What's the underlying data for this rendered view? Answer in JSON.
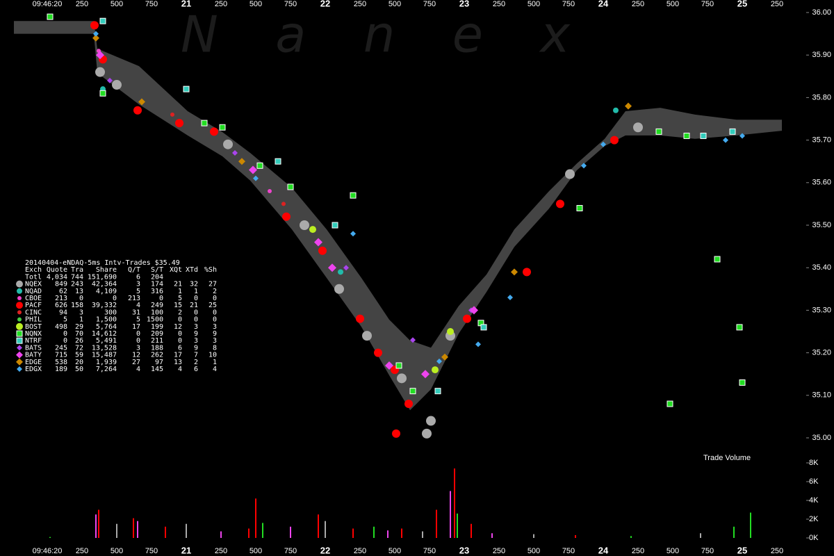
{
  "chart_data": {
    "type": "scatter",
    "watermark": "N a n e x",
    "xlim": [
      19.66,
      25.46
    ],
    "xticks": [
      {
        "value": 20,
        "label": "09:46:20"
      },
      {
        "value": 20.25,
        "label": "250"
      },
      {
        "value": 20.5,
        "label": "500"
      },
      {
        "value": 20.75,
        "label": "750"
      },
      21,
      {
        "value": 21.25,
        "label": "250"
      },
      {
        "value": 21.5,
        "label": "500"
      },
      {
        "value": 21.75,
        "label": "750"
      },
      22,
      {
        "value": 22.25,
        "label": "250"
      },
      {
        "value": 22.5,
        "label": "500"
      },
      {
        "value": 22.75,
        "label": "750"
      },
      23,
      {
        "value": 23.25,
        "label": "250"
      },
      {
        "value": 23.5,
        "label": "500"
      },
      {
        "value": 23.75,
        "label": "750"
      },
      24,
      {
        "value": 24.25,
        "label": "250"
      },
      {
        "value": 24.5,
        "label": "500"
      },
      {
        "value": 24.75,
        "label": "750"
      },
      25,
      {
        "value": 25.25,
        "label": "250"
      }
    ],
    "ylim": [
      35.0,
      36.0
    ],
    "yticks": [
      {
        "value": 35.0,
        "label": "35.00"
      },
      {
        "value": 35.1,
        "label": "35.10"
      },
      {
        "value": 35.2,
        "label": "35.20"
      },
      {
        "value": 35.3,
        "label": "35.30"
      },
      {
        "value": 35.4,
        "label": "35.40"
      },
      {
        "value": 35.5,
        "label": "35.50"
      },
      {
        "value": 35.6,
        "label": "35.60"
      },
      {
        "value": 35.7,
        "label": "35.70"
      },
      {
        "value": 35.8,
        "label": "35.80"
      },
      {
        "value": 35.9,
        "label": "35.90"
      },
      {
        "value": 36.0,
        "label": "36.00"
      }
    ],
    "band": {
      "color": "#444444",
      "x": [
        19.76,
        20.335,
        20.36,
        20.66,
        21.01,
        21.26,
        21.46,
        21.76,
        22.01,
        22.26,
        22.46,
        22.61,
        22.76,
        22.96,
        23.16,
        23.36,
        23.61,
        23.81,
        24.01,
        24.16,
        24.41,
        24.66,
        24.96,
        25.285
      ],
      "high": [
        35.98,
        35.98,
        35.915,
        35.874,
        35.768,
        35.719,
        35.67,
        35.588,
        35.49,
        35.376,
        35.278,
        35.229,
        35.212,
        35.31,
        35.384,
        35.49,
        35.58,
        35.645,
        35.703,
        35.768,
        35.776,
        35.76,
        35.748,
        35.748
      ],
      "low": [
        35.95,
        35.95,
        35.858,
        35.784,
        35.711,
        35.662,
        35.605,
        35.49,
        35.376,
        35.261,
        35.147,
        35.065,
        35.114,
        35.245,
        35.343,
        35.449,
        35.539,
        35.629,
        35.686,
        35.711,
        35.711,
        35.703,
        35.711,
        35.722
      ]
    },
    "legend_title": "20140404-eNDAQ-5ms Intv-Trades $35.49",
    "legend_columns": [
      "Exch",
      "Quote",
      "Tra",
      "Share",
      "Q/T",
      "S/T",
      "XQt",
      "XTd",
      "%Sh"
    ],
    "totals": {
      "label": "Totl",
      "stats": [
        "4,034",
        "744",
        "151,690",
        "6",
        "204"
      ]
    },
    "series": [
      {
        "name": "NQEX",
        "color": "#aaaaaa",
        "marker": "circle",
        "size": 7,
        "stats": [
          "849",
          "243",
          "42,364",
          "3",
          "174",
          "21",
          "32",
          "27"
        ],
        "x": [
          20.38,
          20.5,
          21.3,
          21.85,
          22.1,
          22.3,
          22.55,
          22.76,
          22.73,
          22.9,
          23.76,
          24.25
        ],
        "values": [
          35.86,
          35.83,
          35.69,
          35.5,
          35.35,
          35.24,
          35.14,
          35.04,
          35.01,
          35.24,
          35.62,
          35.73
        ]
      },
      {
        "name": "NQAD",
        "color": "#22bbaa",
        "marker": "circle",
        "size": 4,
        "stats": [
          "62",
          "13",
          "4,109",
          "5",
          "316",
          "1",
          "1",
          "2"
        ],
        "x": [
          20.4,
          22.11,
          24.09
        ],
        "values": [
          35.82,
          35.39,
          35.77
        ]
      },
      {
        "name": "CBOE",
        "color": "#ee44cc",
        "marker": "circle",
        "size": 3,
        "stats": [
          "213",
          "0",
          "0",
          "213",
          "0",
          "5",
          "0",
          "0"
        ],
        "x": [
          20.37,
          21.6
        ],
        "values": [
          35.91,
          35.58
        ]
      },
      {
        "name": "PACF",
        "color": "#ff0000",
        "marker": "circle",
        "size": 6,
        "stats": [
          "626",
          "158",
          "39,332",
          "4",
          "249",
          "15",
          "21",
          "25"
        ],
        "x": [
          20.34,
          20.4,
          20.65,
          20.95,
          21.2,
          21.72,
          21.98,
          22.25,
          22.38,
          22.5,
          22.51,
          22.6,
          23.02,
          23.45,
          23.69,
          24.08
        ],
        "values": [
          35.97,
          35.89,
          35.77,
          35.74,
          35.72,
          35.52,
          35.44,
          35.28,
          35.2,
          35.16,
          35.01,
          35.08,
          35.28,
          35.39,
          35.55,
          35.7
        ]
      },
      {
        "name": "CINC",
        "color": "#dd2222",
        "marker": "circle",
        "size": 3,
        "stats": [
          "94",
          "3",
          "300",
          "31",
          "100",
          "2",
          "0",
          "0"
        ],
        "x": [
          20.9,
          21.7
        ],
        "values": [
          35.76,
          35.55
        ]
      },
      {
        "name": "PHIL",
        "color": "#44cc44",
        "marker": "circle",
        "size": 3,
        "stats": [
          "5",
          "1",
          "1,500",
          "5",
          "1500",
          "0",
          "0",
          "0"
        ],
        "x": [
          21.9
        ],
        "values": [
          35.49
        ]
      },
      {
        "name": "BOST",
        "color": "#bbee22",
        "marker": "circle",
        "size": 5,
        "stats": [
          "498",
          "29",
          "5,764",
          "17",
          "199",
          "12",
          "3",
          "3"
        ],
        "x": [
          22.79,
          22.9,
          21.91
        ],
        "values": [
          35.16,
          35.25,
          35.49
        ]
      },
      {
        "name": "NQNX",
        "color": "#22dd22",
        "marker": "square",
        "size": 4,
        "stats": [
          "0",
          "70",
          "14,612",
          "0",
          "209",
          "0",
          "9",
          "9"
        ],
        "x": [
          20.02,
          20.4,
          21.13,
          21.26,
          21.53,
          21.75,
          22.2,
          22.53,
          22.63,
          23.12,
          23.83,
          24.4,
          24.6,
          24.82,
          24.98,
          25.0,
          24.48
        ],
        "values": [
          35.99,
          35.81,
          35.74,
          35.73,
          35.64,
          35.59,
          35.57,
          35.17,
          35.11,
          35.27,
          35.54,
          35.72,
          35.71,
          35.42,
          35.26,
          35.13,
          35.08
        ]
      },
      {
        "name": "NTRF",
        "color": "#33ccbb",
        "marker": "square",
        "size": 4,
        "stats": [
          "0",
          "26",
          "5,491",
          "0",
          "211",
          "0",
          "3",
          "3"
        ],
        "x": [
          20.4,
          21.0,
          21.66,
          22.07,
          22.81,
          23.14,
          24.72,
          24.93
        ],
        "values": [
          35.98,
          35.82,
          35.65,
          35.5,
          35.11,
          35.26,
          35.71,
          35.72
        ]
      },
      {
        "name": "BATS",
        "color": "#aa44ee",
        "marker": "diamond",
        "size": 4,
        "stats": [
          "245",
          "72",
          "13,528",
          "3",
          "188",
          "6",
          "9",
          "8"
        ],
        "x": [
          20.45,
          21.35,
          22.15,
          22.63,
          23.05
        ],
        "values": [
          35.84,
          35.67,
          35.4,
          35.23,
          35.3
        ]
      },
      {
        "name": "BATY",
        "color": "#ee44ee",
        "marker": "diamond",
        "size": 6,
        "stats": [
          "715",
          "59",
          "15,487",
          "12",
          "262",
          "17",
          "7",
          "10"
        ],
        "x": [
          20.38,
          21.48,
          21.95,
          22.05,
          22.46,
          22.72,
          23.07
        ],
        "values": [
          35.9,
          35.63,
          35.46,
          35.4,
          35.17,
          35.15,
          35.3
        ]
      },
      {
        "name": "EDGE",
        "color": "#cc8800",
        "marker": "diamond",
        "size": 5,
        "stats": [
          "538",
          "20",
          "1,939",
          "27",
          "97",
          "13",
          "2",
          "1"
        ],
        "x": [
          20.35,
          20.68,
          21.4,
          22.86,
          23.36,
          24.18
        ],
        "values": [
          35.94,
          35.79,
          35.65,
          35.19,
          35.39,
          35.78
        ]
      },
      {
        "name": "EDGX",
        "color": "#44aaee",
        "marker": "diamond",
        "size": 4,
        "stats": [
          "189",
          "50",
          "7,264",
          "4",
          "145",
          "4",
          "6",
          "4"
        ],
        "x": [
          20.35,
          21.5,
          22.2,
          22.82,
          23.1,
          23.33,
          23.86,
          24.0,
          24.88,
          25.0
        ],
        "values": [
          35.95,
          35.61,
          35.48,
          35.18,
          35.22,
          35.33,
          35.64,
          35.69,
          35.7,
          35.71
        ]
      }
    ],
    "volume": {
      "title": "Trade Volume",
      "ylim": [
        0,
        8000
      ],
      "yticks": [
        {
          "value": 0,
          "label": "0K"
        },
        {
          "value": 2000,
          "label": "2K"
        },
        {
          "value": 4000,
          "label": "4K"
        },
        {
          "value": 6000,
          "label": "6K"
        },
        {
          "value": 8000,
          "label": "8K"
        }
      ],
      "x": [
        20.02,
        20.35,
        20.37,
        20.5,
        20.62,
        20.65,
        20.85,
        21.0,
        21.25,
        21.45,
        21.5,
        21.55,
        21.75,
        21.95,
        22.0,
        22.2,
        22.35,
        22.45,
        22.55,
        22.7,
        22.8,
        22.9,
        22.93,
        22.95,
        23.05,
        23.2,
        23.5,
        23.8,
        24.2,
        24.7,
        24.94,
        25.06
      ],
      "values": [
        100,
        2500,
        3000,
        1500,
        2100,
        1800,
        1200,
        1500,
        700,
        1000,
        4200,
        1600,
        1200,
        2500,
        1800,
        1000,
        1200,
        800,
        1000,
        700,
        3000,
        5000,
        7400,
        2600,
        1500,
        500,
        400,
        300,
        200,
        500,
        1200,
        2700
      ],
      "colors": [
        "#22dd22",
        "#ee44ee",
        "#ff0000",
        "#aaaaaa",
        "#ff0000",
        "#ee44ee",
        "#ff0000",
        "#aaaaaa",
        "#ee44ee",
        "#ff0000",
        "#ff0000",
        "#22dd22",
        "#ee44ee",
        "#ff0000",
        "#aaaaaa",
        "#ff0000",
        "#22dd22",
        "#ee44ee",
        "#ff0000",
        "#aaaaaa",
        "#ff0000",
        "#ee44ee",
        "#ff0000",
        "#22dd22",
        "#ff0000",
        "#ee44ee",
        "#aaaaaa",
        "#ff0000",
        "#22dd22",
        "#aaaaaa",
        "#22dd22",
        "#22dd22"
      ]
    }
  }
}
